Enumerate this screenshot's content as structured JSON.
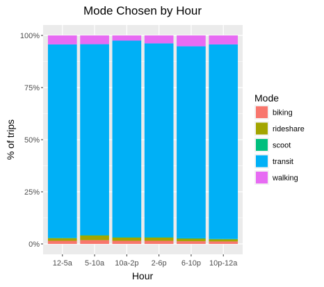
{
  "chart_data": {
    "type": "bar",
    "stacked": true,
    "title": "Mode Chosen by Hour",
    "xlabel": "Hour",
    "ylabel": "% of trips",
    "categories": [
      "12-5a",
      "5-10a",
      "10a-2p",
      "2-6p",
      "6-10p",
      "10p-12a"
    ],
    "ylim": [
      0,
      1
    ],
    "yticks": [
      0,
      0.25,
      0.5,
      0.75,
      1.0
    ],
    "ytick_labels": [
      "0%",
      "25%",
      "50%",
      "75%",
      "100%"
    ],
    "grid": true,
    "legend_position": "right",
    "legend_title": "Mode",
    "series": [
      {
        "name": "biking",
        "color": "#F8766D",
        "values": [
          0.015,
          0.018,
          0.015,
          0.015,
          0.013,
          0.012
        ]
      },
      {
        "name": "rideshare",
        "color": "#A3A500",
        "values": [
          0.012,
          0.022,
          0.015,
          0.015,
          0.012,
          0.01
        ]
      },
      {
        "name": "scoot",
        "color": "#00BF7D",
        "values": [
          0.002,
          0.002,
          0.002,
          0.002,
          0.002,
          0.002
        ]
      },
      {
        "name": "transit",
        "color": "#00B0F6",
        "values": [
          0.928,
          0.916,
          0.943,
          0.93,
          0.921,
          0.933
        ]
      },
      {
        "name": "walking",
        "color": "#E76BF3",
        "values": [
          0.043,
          0.042,
          0.025,
          0.038,
          0.052,
          0.043
        ]
      }
    ]
  }
}
